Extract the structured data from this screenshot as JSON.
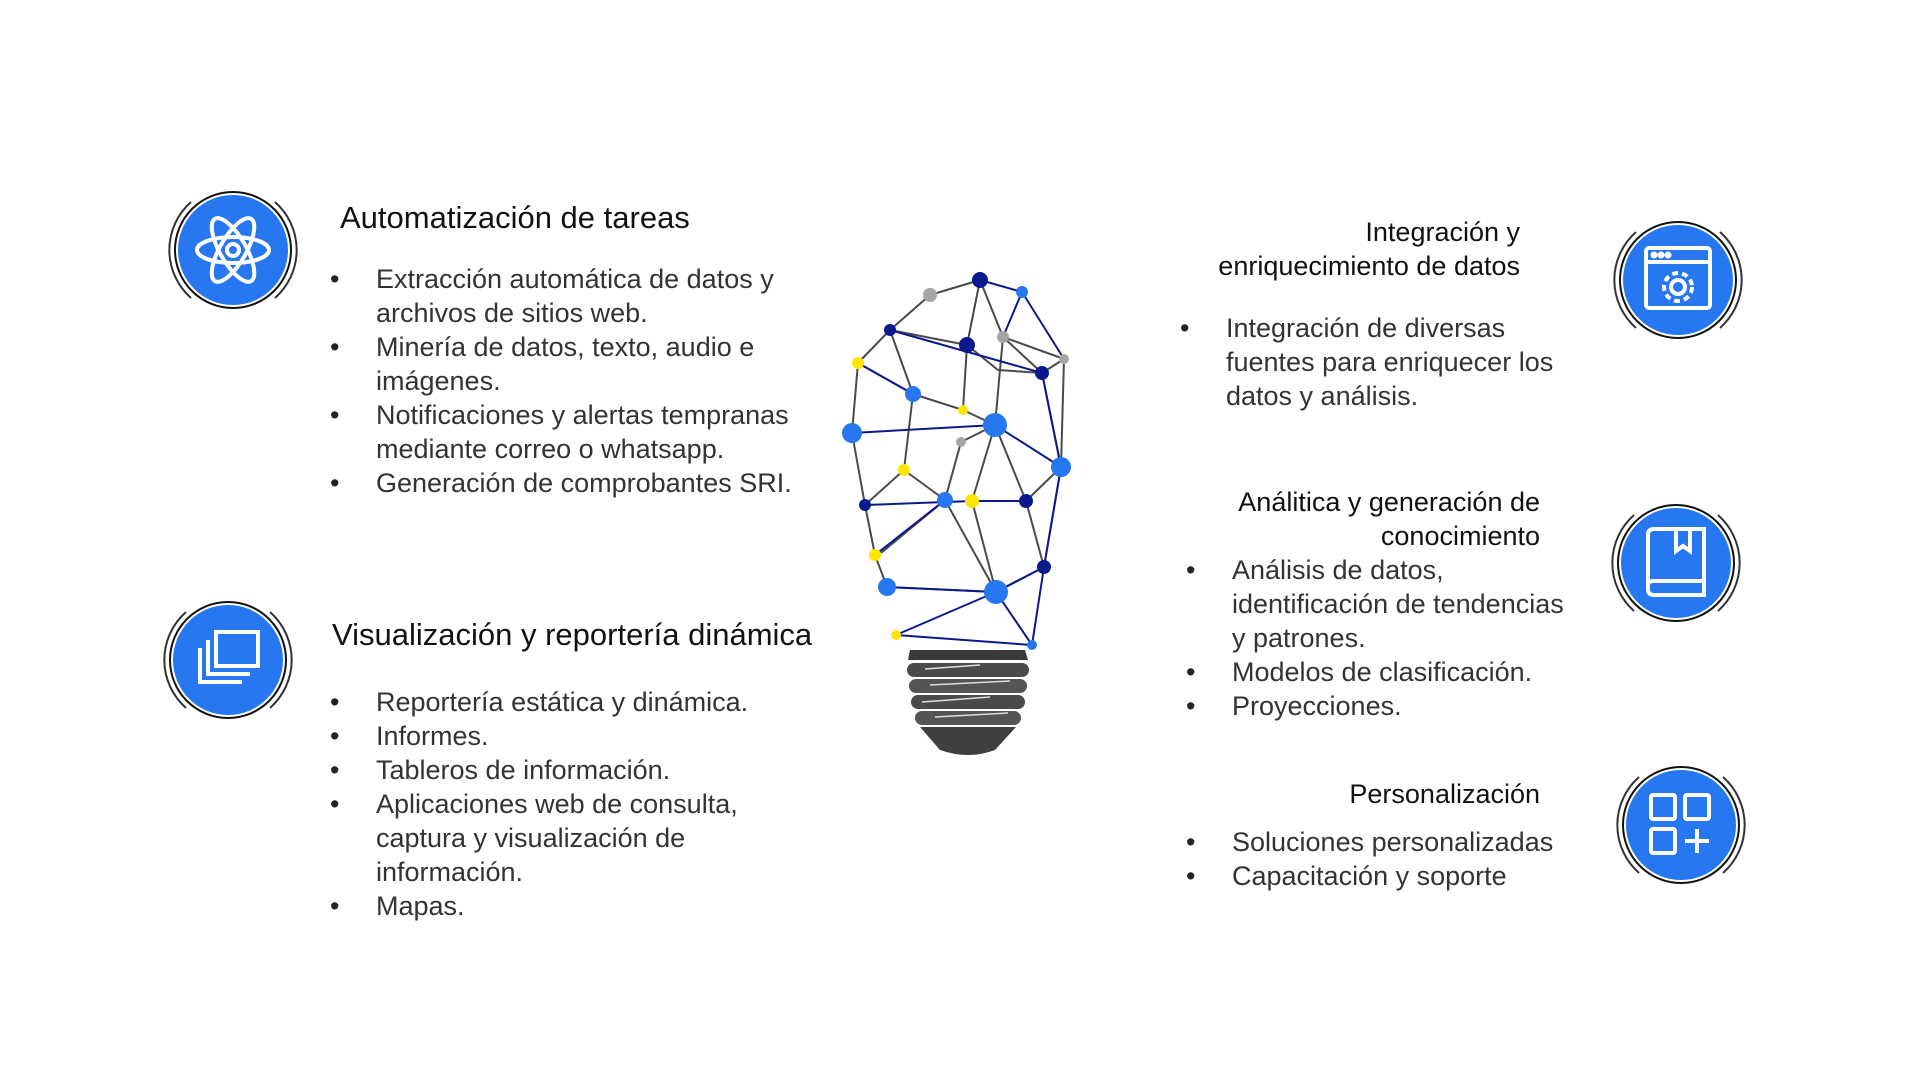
{
  "colors": {
    "accent": "#2677f0",
    "node_dark": "#0a1a8c",
    "node_yellow": "#ffe500",
    "node_gray": "#a6a6a6",
    "bulb_base": "#555555"
  },
  "sections": {
    "automatizacion": {
      "title": "Automatización de tareas",
      "icon": "atom-icon",
      "items": [
        "Extracción automática de datos y archivos de sitios web.",
        "Minería de datos, texto, audio e imágenes.",
        "Notificaciones y alertas tempranas mediante correo o whatsapp.",
        "Generación de comprobantes SRI."
      ]
    },
    "visualizacion": {
      "title": "Visualización y reportería dinámica",
      "icon": "layers-icon",
      "items": [
        "Reportería estática y dinámica.",
        "Informes.",
        "Tableros de información.",
        "Aplicaciones web de consulta, captura y visualización de información.",
        "Mapas."
      ]
    },
    "integracion": {
      "title_line1": "Integración y",
      "title_line2": "enriquecimiento de datos",
      "icon": "browser-gear-icon",
      "items": [
        "Integración de diversas fuentes para enriquecer los datos y análisis."
      ]
    },
    "analitica": {
      "title_line1": "Análitica y generación de",
      "title_line2": "conocimiento",
      "icon": "book-icon",
      "items": [
        "Análisis de datos, identificación de tendencias y patrones.",
        "Modelos de clasificación.",
        "Proyecciones."
      ]
    },
    "personalizacion": {
      "title": "Personalización",
      "icon": "apps-add-icon",
      "items": [
        "Soluciones personalizadas",
        "Capacitación y soporte"
      ]
    }
  },
  "center": {
    "icon": "network-lightbulb-icon"
  }
}
